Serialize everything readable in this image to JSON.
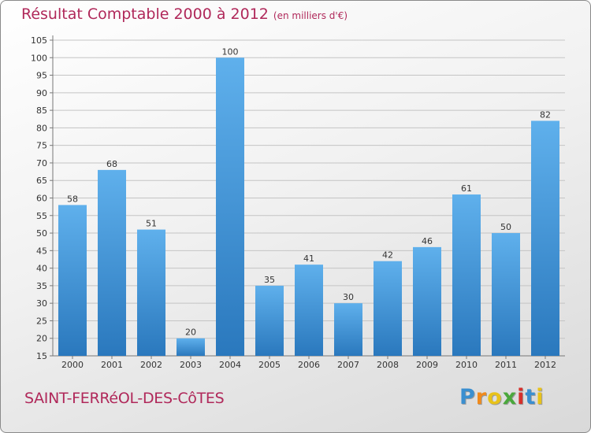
{
  "chart_data": {
    "type": "bar",
    "title": "Résultat Comptable 2000 à 2012",
    "subtitle": "(en milliers d'€)",
    "categories": [
      "2000",
      "2001",
      "2002",
      "2003",
      "2004",
      "2005",
      "2006",
      "2007",
      "2008",
      "2009",
      "2010",
      "2011",
      "2012"
    ],
    "values": [
      58,
      68,
      51,
      20,
      100,
      35,
      41,
      30,
      42,
      46,
      61,
      50,
      82
    ],
    "ylim": [
      15,
      105
    ],
    "yticks": [
      15,
      20,
      25,
      30,
      35,
      40,
      45,
      50,
      55,
      60,
      65,
      70,
      75,
      80,
      85,
      90,
      95,
      100,
      105
    ],
    "grid": true,
    "xlabel": "",
    "ylabel": "",
    "bar_color": "#4a9ee0"
  },
  "footer": {
    "commune": "SAINT-FERRéOL-DES-CôTES",
    "logo_letters": [
      "P",
      "r",
      "o",
      "x",
      "i",
      "t",
      "i"
    ],
    "logo_colors": [
      "#3a8fd0",
      "#f08a1c",
      "#e8c21a",
      "#4aa83c",
      "#d6302c",
      "#3a8fd0",
      "#e8c21a"
    ]
  }
}
